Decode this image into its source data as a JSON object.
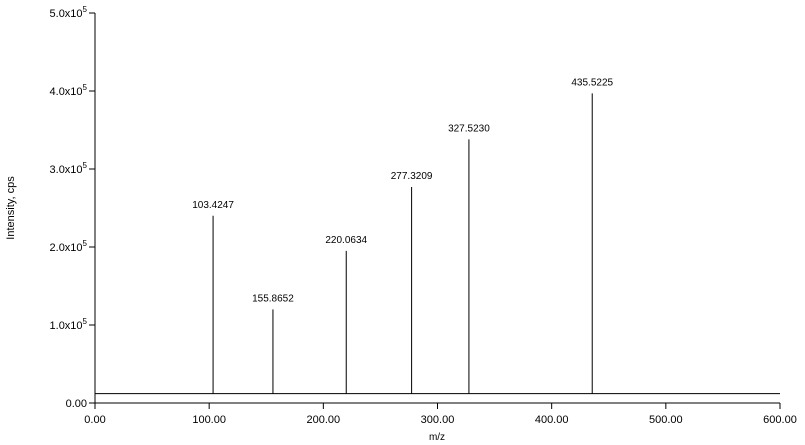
{
  "chart_data": {
    "type": "stem",
    "x_label": "m/z",
    "y_label": "Intensity, cps",
    "x": [
      103.4247,
      155.8652,
      220.0634,
      277.3209,
      327.523,
      435.5225
    ],
    "x_labels": [
      "103.4247",
      "155.8652",
      "220.0634",
      "277.3209",
      "327.5230",
      "435.5225"
    ],
    "values": [
      240000,
      120000,
      195000,
      277000,
      338000,
      397000
    ],
    "baseline": 12000,
    "color": "#000000",
    "xlim": [
      0,
      600
    ],
    "xticks": [
      {
        "value": 0,
        "label": "0.00"
      },
      {
        "value": 100,
        "label": "100.00"
      },
      {
        "value": 200,
        "label": "200.00"
      },
      {
        "value": 300,
        "label": "300.00"
      },
      {
        "value": 400,
        "label": "400.00"
      },
      {
        "value": 500,
        "label": "500.00"
      },
      {
        "value": 600,
        "label": "600.00"
      }
    ],
    "ylim": [
      0,
      500000
    ],
    "yticks": [
      {
        "value": 0,
        "label": "0.00"
      },
      {
        "value": 100000,
        "label": "1.0x10",
        "sup": "5"
      },
      {
        "value": 200000,
        "label": "2.0x10",
        "sup": "5"
      },
      {
        "value": 300000,
        "label": "3.0x10",
        "sup": "5"
      },
      {
        "value": 400000,
        "label": "4.0x10",
        "sup": "5"
      },
      {
        "value": 500000,
        "label": "5.0x10",
        "sup": "5"
      }
    ],
    "grid": false
  }
}
